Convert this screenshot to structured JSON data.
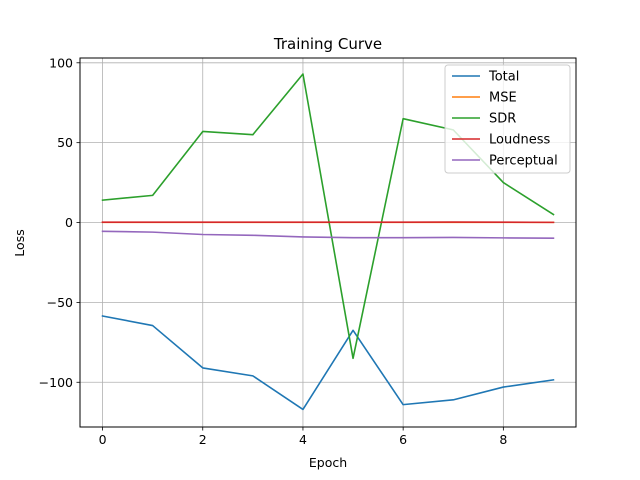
{
  "chart_data": {
    "type": "line",
    "title": "Training Curve",
    "xlabel": "Epoch",
    "ylabel": "Loss",
    "x": [
      0,
      1,
      2,
      3,
      4,
      5,
      6,
      7,
      8,
      9
    ],
    "xlim": [
      -0.45,
      9.45
    ],
    "ylim": [
      -128,
      103
    ],
    "xticks": [
      0,
      2,
      4,
      6,
      8
    ],
    "yticks": [
      -100,
      -50,
      0,
      50,
      100
    ],
    "xtick_labels": [
      "0",
      "2",
      "4",
      "6",
      "8"
    ],
    "ytick_labels": [
      "−100",
      "−50",
      "0",
      "50",
      "100"
    ],
    "grid": true,
    "legend_position": "upper-right",
    "series": [
      {
        "name": "Total",
        "color": "#1f77b4",
        "values": [
          -58.5,
          -64.5,
          -91,
          -96,
          -117,
          -67.5,
          -114,
          -111,
          -103,
          -98.5
        ]
      },
      {
        "name": "MSE",
        "color": "#ff7f0e",
        "values": [
          0.1,
          0.1,
          0.1,
          0.1,
          0.1,
          0.1,
          0.1,
          0.1,
          0.1,
          0.1
        ]
      },
      {
        "name": "SDR",
        "color": "#2ca02c",
        "values": [
          14,
          17,
          57,
          55,
          93,
          -85,
          65,
          58,
          25,
          5
        ]
      },
      {
        "name": "Loudness",
        "color": "#d62728",
        "values": [
          0.2,
          0.2,
          0.2,
          0.2,
          0.2,
          0.2,
          0.2,
          0.3,
          0.2,
          0.1
        ]
      },
      {
        "name": "Perceptual",
        "color": "#9467bd",
        "values": [
          -5.5,
          -6,
          -7.5,
          -8,
          -9,
          -9.5,
          -9.5,
          -9.3,
          -9.6,
          -9.8
        ]
      }
    ]
  }
}
